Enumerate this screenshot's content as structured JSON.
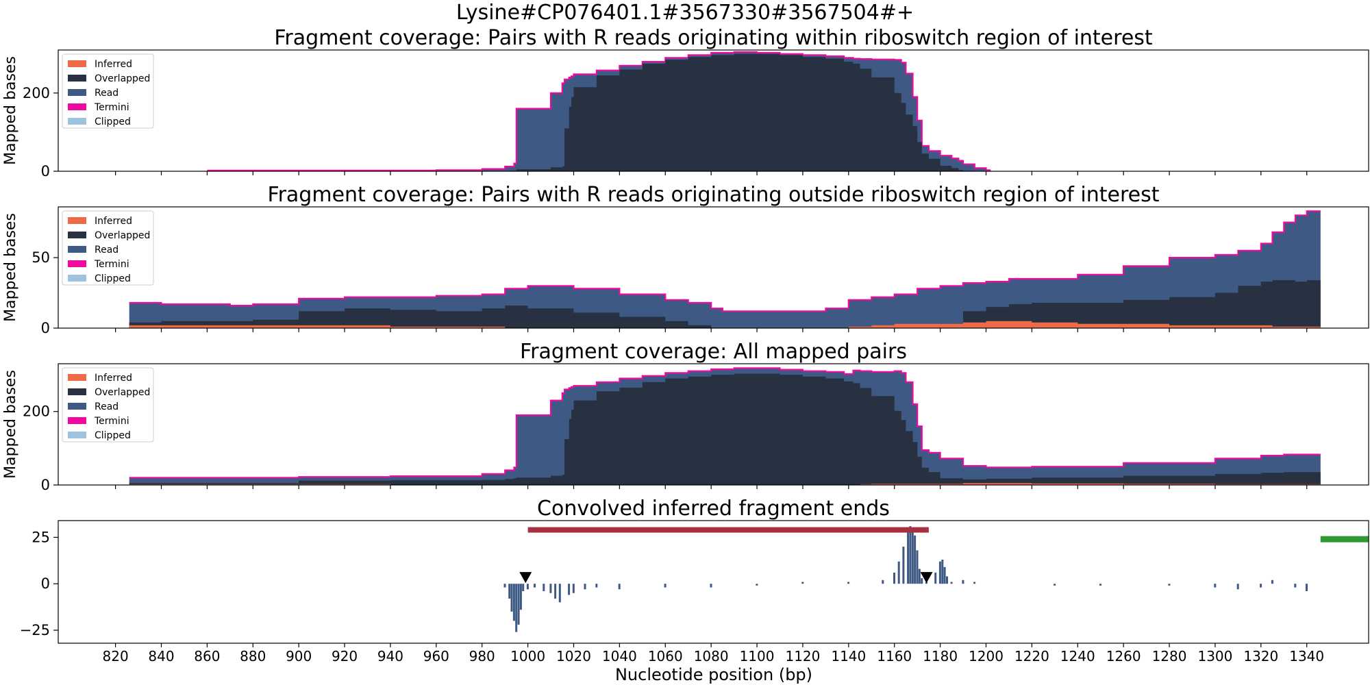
{
  "figure": {
    "suptitle": "Lysine#CP076401.1#3567330#3567504#+",
    "xlabel": "Nucleotide position (bp)"
  },
  "colors": {
    "inferred": "#ef6a47",
    "overlapped": "#273142",
    "read": "#3e5a84",
    "termini": "#f0099e",
    "clipped": "#9ec3df",
    "riboswitch_bar": "#a83141",
    "gene_bar": "#2f9a33",
    "marker": "#000000"
  },
  "chart_data": [
    {
      "type": "area",
      "title": "Fragment coverage: Pairs with R reads originating within riboswitch region of interest",
      "ylabel": "Mapped bases",
      "xlim": [
        795,
        1367
      ],
      "ylim": [
        0,
        310
      ],
      "yticks": [
        0,
        200
      ],
      "legend": {
        "position": "top-left",
        "entries": [
          "Inferred",
          "Overlapped",
          "Read",
          "Termini",
          "Clipped"
        ]
      },
      "x": [
        860,
        920,
        960,
        980,
        990,
        994,
        995,
        1010,
        1015,
        1016,
        1018,
        1019,
        1020,
        1030,
        1040,
        1050,
        1060,
        1070,
        1080,
        1090,
        1100,
        1110,
        1120,
        1130,
        1138,
        1142,
        1145,
        1150,
        1160,
        1163,
        1165,
        1168,
        1170,
        1172,
        1175,
        1180,
        1185,
        1188,
        1190,
        1195,
        1200,
        1202
      ],
      "series": [
        {
          "name": "Inferred",
          "values": [
            0,
            0,
            0,
            0,
            0,
            0,
            0,
            0,
            0,
            0,
            0,
            0,
            0,
            0,
            0,
            0,
            0,
            0,
            0,
            0,
            0,
            0,
            0,
            0,
            0,
            0,
            0,
            0,
            0,
            0,
            0,
            0,
            0,
            0,
            0,
            0,
            0,
            0,
            0,
            0,
            0,
            0
          ]
        },
        {
          "name": "Overlapped",
          "values": [
            0,
            0,
            0,
            0,
            0,
            2,
            5,
            10,
            13,
            110,
            165,
            190,
            215,
            245,
            260,
            275,
            285,
            292,
            297,
            300,
            300,
            297,
            292,
            288,
            280,
            275,
            262,
            240,
            200,
            175,
            145,
            115,
            75,
            45,
            32,
            14,
            8,
            3,
            1,
            0,
            0,
            0
          ]
        },
        {
          "name": "Read",
          "values": [
            2,
            2,
            3,
            6,
            12,
            20,
            160,
            200,
            225,
            235,
            240,
            243,
            248,
            258,
            270,
            280,
            290,
            297,
            303,
            305,
            303,
            300,
            297,
            294,
            290,
            288,
            287,
            286,
            285,
            278,
            250,
            190,
            130,
            65,
            52,
            40,
            33,
            27,
            18,
            8,
            3,
            0
          ]
        }
      ]
    },
    {
      "type": "area",
      "title": "Fragment coverage: Pairs with R reads originating outside riboswitch region of interest",
      "ylabel": "Mapped bases",
      "xlim": [
        795,
        1367
      ],
      "ylim": [
        0,
        86
      ],
      "yticks": [
        0,
        50
      ],
      "legend": {
        "position": "top-left",
        "entries": [
          "Inferred",
          "Overlapped",
          "Read",
          "Termini",
          "Clipped"
        ]
      },
      "x": [
        826,
        840,
        850,
        870,
        880,
        900,
        920,
        930,
        940,
        960,
        980,
        990,
        1000,
        1020,
        1040,
        1060,
        1070,
        1080,
        1085,
        1100,
        1120,
        1130,
        1140,
        1150,
        1160,
        1170,
        1180,
        1190,
        1200,
        1210,
        1220,
        1240,
        1260,
        1280,
        1300,
        1310,
        1320,
        1325,
        1330,
        1335,
        1340,
        1346
      ],
      "series": [
        {
          "name": "Inferred",
          "values": [
            2,
            2,
            2,
            2,
            2,
            2,
            2,
            2,
            1,
            1,
            1,
            0,
            0,
            0,
            0,
            0,
            0,
            0,
            0,
            0,
            0,
            0,
            1,
            2,
            3,
            3,
            3,
            4,
            5,
            5,
            4,
            3,
            3,
            2,
            2,
            2,
            2,
            1,
            1,
            1,
            1,
            1
          ]
        },
        {
          "name": "Overlapped",
          "values": [
            4,
            5,
            5,
            5,
            6,
            12,
            14,
            14,
            13,
            12,
            14,
            16,
            14,
            11,
            8,
            5,
            2,
            0,
            0,
            0,
            0,
            0,
            0,
            0,
            0,
            0,
            3,
            12,
            15,
            17,
            18,
            18,
            20,
            22,
            25,
            30,
            33,
            34,
            34,
            33,
            34,
            38
          ]
        },
        {
          "name": "Read",
          "values": [
            18,
            17,
            17,
            16,
            17,
            21,
            22,
            22,
            22,
            23,
            24,
            28,
            30,
            28,
            24,
            20,
            18,
            14,
            12,
            12,
            12,
            14,
            20,
            22,
            24,
            28,
            30,
            32,
            33,
            35,
            35,
            38,
            44,
            50,
            52,
            55,
            60,
            68,
            75,
            80,
            83,
            86
          ]
        }
      ]
    },
    {
      "type": "area",
      "title": "Fragment coverage: All mapped pairs",
      "ylabel": "Mapped bases",
      "xlim": [
        795,
        1367
      ],
      "ylim": [
        0,
        330
      ],
      "yticks": [
        0,
        200
      ],
      "legend": {
        "position": "top-left",
        "entries": [
          "Inferred",
          "Overlapped",
          "Read",
          "Termini",
          "Clipped"
        ]
      },
      "x": [
        826,
        860,
        900,
        940,
        980,
        990,
        994,
        995,
        1010,
        1015,
        1016,
        1018,
        1019,
        1020,
        1030,
        1040,
        1050,
        1060,
        1070,
        1080,
        1090,
        1100,
        1110,
        1120,
        1130,
        1138,
        1142,
        1145,
        1150,
        1160,
        1163,
        1165,
        1168,
        1170,
        1172,
        1175,
        1180,
        1190,
        1200,
        1220,
        1260,
        1300,
        1320,
        1330,
        1346
      ],
      "series": [
        {
          "name": "Inferred",
          "values": [
            2,
            2,
            2,
            1,
            1,
            0,
            0,
            0,
            0,
            0,
            0,
            0,
            0,
            0,
            0,
            0,
            0,
            0,
            0,
            0,
            0,
            0,
            0,
            0,
            0,
            0,
            1,
            2,
            3,
            3,
            3,
            3,
            3,
            3,
            3,
            3,
            3,
            5,
            5,
            4,
            3,
            2,
            2,
            2,
            1
          ]
        },
        {
          "name": "Overlapped",
          "values": [
            5,
            5,
            12,
            13,
            14,
            16,
            18,
            20,
            25,
            28,
            125,
            180,
            205,
            230,
            255,
            265,
            280,
            290,
            295,
            300,
            303,
            303,
            300,
            295,
            290,
            282,
            277,
            264,
            242,
            202,
            177,
            147,
            117,
            77,
            47,
            35,
            18,
            15,
            17,
            20,
            25,
            30,
            33,
            35,
            40
          ]
        },
        {
          "name": "Read",
          "values": [
            20,
            20,
            22,
            24,
            30,
            40,
            48,
            190,
            230,
            250,
            260,
            264,
            267,
            270,
            280,
            290,
            297,
            305,
            310,
            315,
            318,
            318,
            314,
            310,
            308,
            302,
            312,
            310,
            308,
            310,
            305,
            280,
            220,
            160,
            95,
            88,
            72,
            52,
            48,
            50,
            60,
            72,
            80,
            83,
            86
          ]
        }
      ]
    },
    {
      "type": "bar",
      "title": "Convolved inferred fragment ends",
      "xlabel": "Nucleotide position (bp)",
      "xlim": [
        795,
        1367
      ],
      "ylim": [
        -32,
        34
      ],
      "yticks": [
        -25,
        0,
        25
      ],
      "xticks": [
        820,
        840,
        860,
        880,
        900,
        920,
        940,
        960,
        980,
        1000,
        1020,
        1040,
        1060,
        1080,
        1100,
        1120,
        1140,
        1160,
        1180,
        1200,
        1220,
        1240,
        1260,
        1280,
        1300,
        1320,
        1340
      ],
      "x": [
        990,
        992,
        993,
        994,
        995,
        996,
        997,
        998,
        1000,
        1003,
        1007,
        1010,
        1012,
        1014,
        1018,
        1020,
        1025,
        1030,
        1040,
        1060,
        1080,
        1100,
        1120,
        1140,
        1155,
        1160,
        1162,
        1164,
        1166,
        1167,
        1168,
        1169,
        1170,
        1171,
        1172,
        1174,
        1178,
        1180,
        1181,
        1182,
        1183,
        1185,
        1190,
        1195,
        1230,
        1250,
        1280,
        1300,
        1310,
        1320,
        1325,
        1335,
        1340
      ],
      "values": [
        -2,
        -8,
        -15,
        -20,
        -26,
        -22,
        -14,
        -4,
        -3,
        -2,
        -4,
        -5,
        -8,
        -10,
        -6,
        -5,
        -3,
        -2,
        -3,
        -2,
        -2,
        -1,
        1,
        1,
        2,
        6,
        12,
        20,
        28,
        31,
        30,
        26,
        18,
        8,
        3,
        1,
        6,
        12,
        13,
        9,
        4,
        1,
        2,
        1,
        -1,
        -1,
        -1,
        -2,
        -3,
        -2,
        2,
        -2,
        -4
      ],
      "annotations": {
        "riboswitch_bar": {
          "start": 1000,
          "end": 1175,
          "y": 29
        },
        "gene_bar": {
          "start": 1346,
          "end": 1367,
          "y": 24
        },
        "markers": [
          {
            "x": 999,
            "y": 3
          },
          {
            "x": 1174,
            "y": 3
          }
        ]
      }
    }
  ]
}
